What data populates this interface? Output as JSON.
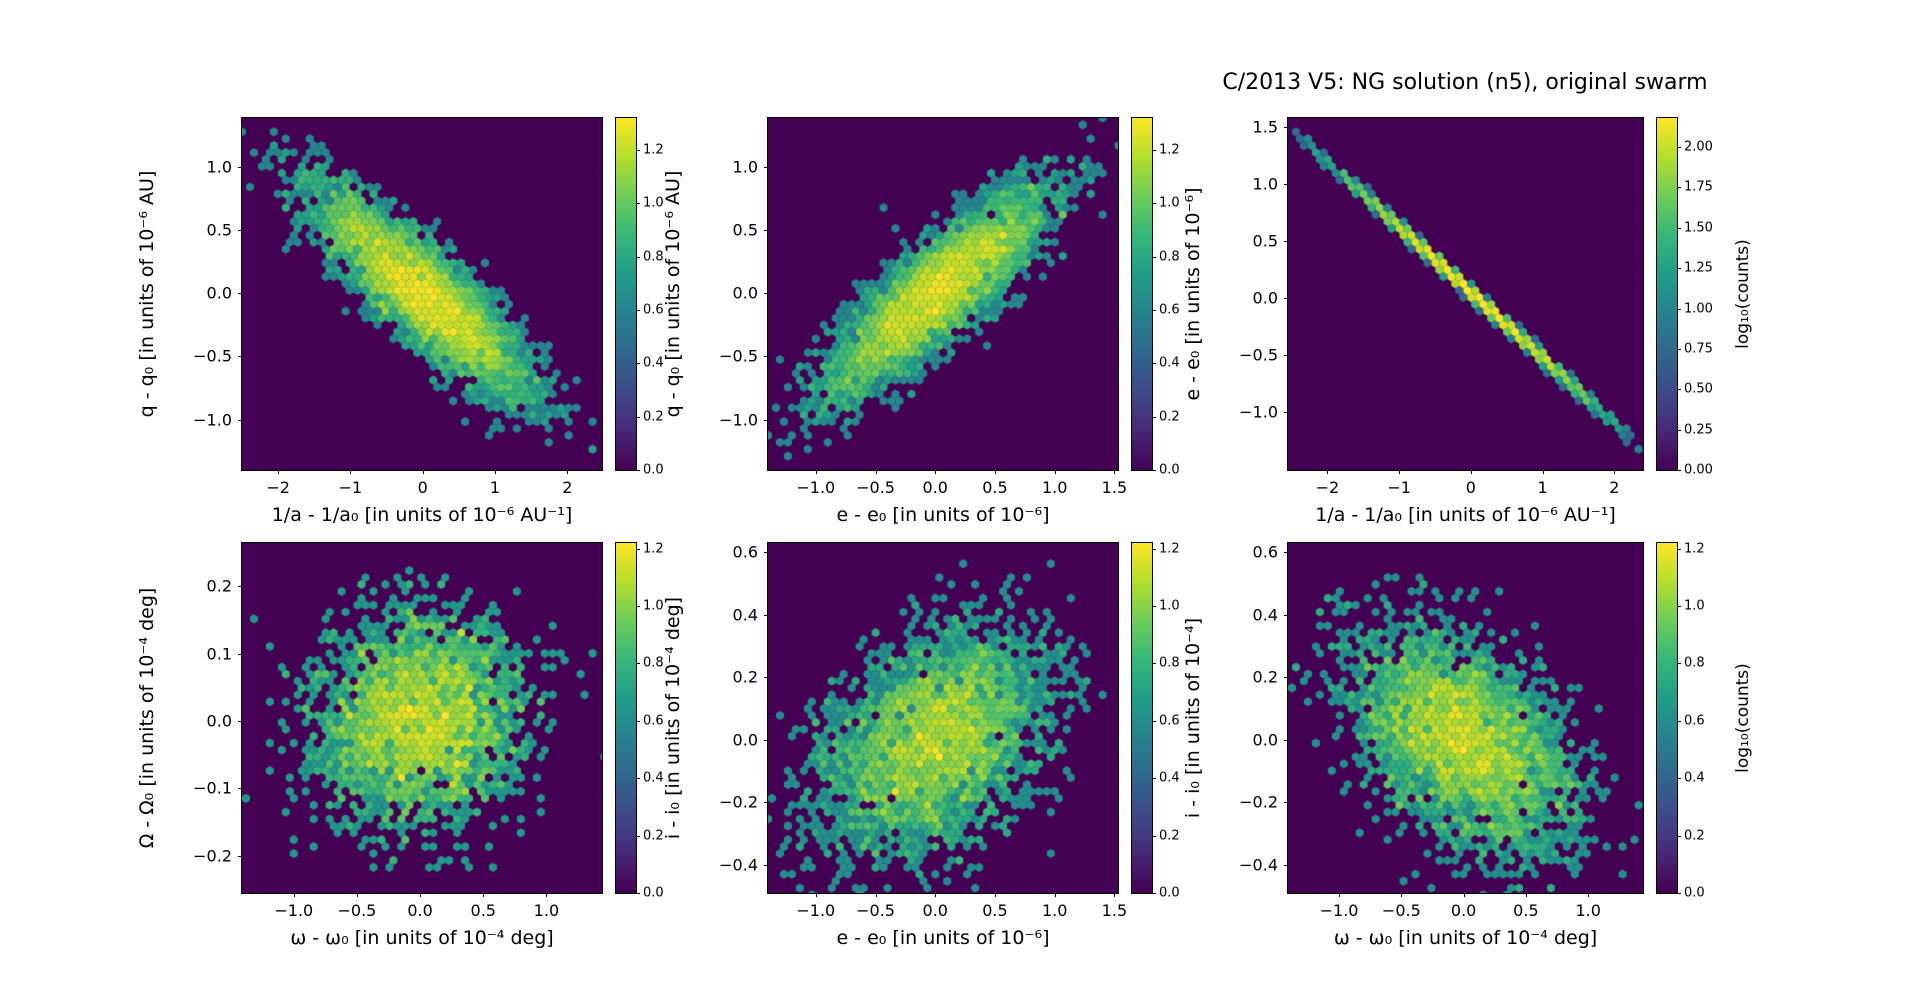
{
  "figure": {
    "title": "C/2013 V5: NG solution (n5), original swarm",
    "background": "#ffffff",
    "plot_background": "#440154",
    "colormap": "viridis",
    "colorbar_label": "log₁₀(counts)"
  },
  "chart_data": [
    {
      "id": "q-vs-inva",
      "type": "heatmap",
      "subtype": "hexbin",
      "xlabel": "1/a - 1/a₀ [in units of 10⁻⁶ AU⁻¹]",
      "ylabel": "q - q₀ [in units of 10⁻⁶ AU]",
      "xlim": [
        -2.5,
        2.48
      ],
      "ylim": [
        -1.4,
        1.39
      ],
      "xticks": {
        "values": [
          -2,
          -1,
          0,
          1,
          2
        ],
        "labels": [
          "−2",
          "−1",
          "0",
          "1",
          "2"
        ]
      },
      "yticks": {
        "values": [
          1.0,
          0.5,
          0.0,
          -0.5,
          -1.0
        ],
        "labels": [
          "1.0",
          "0.5",
          "0.0",
          "−0.5",
          "−1.0"
        ]
      },
      "colorbar": {
        "vmax": 1.32,
        "tick_values": [
          0.0,
          0.2,
          0.4,
          0.6,
          0.8,
          1.0,
          1.2
        ],
        "tick_labels": [
          "0.0",
          "0.2",
          "0.4",
          "0.6",
          "0.8",
          "1.0",
          "1.2"
        ],
        "label": ""
      },
      "distribution": {
        "kind": "gaussian",
        "sigma_x": 0.72,
        "sigma_y": 0.4,
        "rho": -0.86,
        "n": 4000,
        "seed": 101
      }
    },
    {
      "id": "q-vs-e",
      "type": "heatmap",
      "subtype": "hexbin",
      "xlabel": "e - e₀ [in units of 10⁻⁶]",
      "ylabel": "q - q₀ [in units of 10⁻⁶ AU]",
      "xlim": [
        -1.4,
        1.53
      ],
      "ylim": [
        -1.4,
        1.39
      ],
      "xticks": {
        "values": [
          -1.0,
          -0.5,
          0.0,
          0.5,
          1.0,
          1.5
        ],
        "labels": [
          "−1.0",
          "−0.5",
          "0.0",
          "0.5",
          "1.0",
          "1.5"
        ]
      },
      "yticks": {
        "values": [
          1.0,
          0.5,
          0.0,
          -0.5,
          -1.0
        ],
        "labels": [
          "1.0",
          "0.5",
          "0.0",
          "−0.5",
          "−1.0"
        ]
      },
      "colorbar": {
        "vmax": 1.32,
        "tick_values": [
          0.0,
          0.2,
          0.4,
          0.6,
          0.8,
          1.0,
          1.2
        ],
        "tick_labels": [
          "0.0",
          "0.2",
          "0.4",
          "0.6",
          "0.8",
          "1.0",
          "1.2"
        ],
        "label": ""
      },
      "distribution": {
        "kind": "gaussian",
        "sigma_x": 0.45,
        "sigma_y": 0.4,
        "rho": 0.86,
        "n": 4000,
        "seed": 102
      }
    },
    {
      "id": "e-vs-inva",
      "type": "heatmap",
      "subtype": "hexbin",
      "xlabel": "1/a - 1/a₀ [in units of 10⁻⁶ AU⁻¹]",
      "ylabel": "e - e₀ [in units of 10⁻⁶]",
      "xlim": [
        -2.55,
        2.4
      ],
      "ylim": [
        -1.51,
        1.58
      ],
      "xticks": {
        "values": [
          -2,
          -1,
          0,
          1,
          2
        ],
        "labels": [
          "−2",
          "−1",
          "0",
          "1",
          "2"
        ]
      },
      "yticks": {
        "values": [
          1.5,
          1.0,
          0.5,
          0.0,
          -0.5,
          -1.0
        ],
        "labels": [
          "1.5",
          "1.0",
          "0.5",
          "0.0",
          "−0.5",
          "−1.0"
        ]
      },
      "colorbar": {
        "vmax": 2.18,
        "tick_values": [
          0.0,
          0.25,
          0.5,
          0.75,
          1.0,
          1.25,
          1.5,
          1.75,
          2.0
        ],
        "tick_labels": [
          "0.00",
          "0.25",
          "0.50",
          "0.75",
          "1.00",
          "1.25",
          "1.50",
          "1.75",
          "2.00"
        ],
        "label": "log₁₀(counts)"
      },
      "distribution": {
        "kind": "line",
        "sigma_x": 0.75,
        "slope": -0.575,
        "intercept": 0.05,
        "noise": 0.018,
        "n": 6000,
        "seed": 103
      }
    },
    {
      "id": "Omega-vs-omega",
      "type": "heatmap",
      "subtype": "hexbin",
      "xlabel": "ω - ω₀ [in units of 10⁻⁴ deg]",
      "ylabel": "Ω - Ω₀ [in units of 10⁻⁴ deg]",
      "xlim": [
        -1.41,
        1.44
      ],
      "ylim": [
        -0.255,
        0.264
      ],
      "xticks": {
        "values": [
          -1.0,
          -0.5,
          0.0,
          0.5,
          1.0
        ],
        "labels": [
          "−1.0",
          "−0.5",
          "0.0",
          "0.5",
          "1.0"
        ]
      },
      "yticks": {
        "values": [
          0.2,
          0.1,
          0.0,
          -0.1,
          -0.2
        ],
        "labels": [
          "0.2",
          "0.1",
          "0.0",
          "−0.1",
          "−0.2"
        ]
      },
      "colorbar": {
        "vmax": 1.22,
        "tick_values": [
          0.0,
          0.2,
          0.4,
          0.6,
          0.8,
          1.0,
          1.2
        ],
        "tick_labels": [
          "0.0",
          "0.2",
          "0.4",
          "0.6",
          "0.8",
          "1.0",
          "1.2"
        ],
        "label": ""
      },
      "distribution": {
        "kind": "gaussian",
        "sigma_x": 0.4,
        "sigma_y": 0.078,
        "rho": 0.05,
        "n": 2600,
        "seed": 104
      }
    },
    {
      "id": "i-vs-e",
      "type": "heatmap",
      "subtype": "hexbin",
      "xlabel": "e - e₀ [in units of 10⁻⁶]",
      "ylabel": "i - i₀ [in units of 10⁻⁴ deg]",
      "xlim": [
        -1.4,
        1.53
      ],
      "ylim": [
        -0.49,
        0.63
      ],
      "xticks": {
        "values": [
          -1.0,
          -0.5,
          0.0,
          0.5,
          1.0,
          1.5
        ],
        "labels": [
          "−1.0",
          "−0.5",
          "0.0",
          "0.5",
          "1.0",
          "1.5"
        ]
      },
      "yticks": {
        "values": [
          0.6,
          0.4,
          0.2,
          0.0,
          -0.2,
          -0.4
        ],
        "labels": [
          "0.6",
          "0.4",
          "0.2",
          "0.0",
          "−0.2",
          "−0.4"
        ]
      },
      "colorbar": {
        "vmax": 1.22,
        "tick_values": [
          0.0,
          0.2,
          0.4,
          0.6,
          0.8,
          1.0,
          1.2
        ],
        "tick_labels": [
          "0.0",
          "0.2",
          "0.4",
          "0.6",
          "0.8",
          "1.0",
          "1.2"
        ],
        "label": ""
      },
      "distribution": {
        "kind": "gaussian",
        "sigma_x": 0.45,
        "sigma_y": 0.17,
        "rho": 0.35,
        "n": 3200,
        "seed": 105
      }
    },
    {
      "id": "i-vs-omega",
      "type": "heatmap",
      "subtype": "hexbin",
      "xlabel": "ω - ω₀ [in units of 10⁻⁴ deg]",
      "ylabel": "i - i₀ [in units of 10⁻⁴]",
      "xlim": [
        -1.41,
        1.44
      ],
      "ylim": [
        -0.49,
        0.63
      ],
      "xticks": {
        "values": [
          -1.0,
          -0.5,
          0.0,
          0.5,
          1.0
        ],
        "labels": [
          "−1.0",
          "−0.5",
          "0.0",
          "0.5",
          "1.0"
        ]
      },
      "yticks": {
        "values": [
          0.6,
          0.4,
          0.2,
          0.0,
          -0.2,
          -0.4
        ],
        "labels": [
          "0.6",
          "0.4",
          "0.2",
          "0.0",
          "−0.2",
          "−0.4"
        ]
      },
      "colorbar": {
        "vmax": 1.22,
        "tick_values": [
          0.0,
          0.2,
          0.4,
          0.6,
          0.8,
          1.0,
          1.2
        ],
        "tick_labels": [
          "0.0",
          "0.2",
          "0.4",
          "0.6",
          "0.8",
          "1.0",
          "1.2"
        ],
        "label": "log₁₀(counts)"
      },
      "distribution": {
        "kind": "gaussian",
        "sigma_x": 0.42,
        "sigma_y": 0.17,
        "rho": -0.45,
        "n": 3200,
        "seed": 106
      }
    }
  ]
}
